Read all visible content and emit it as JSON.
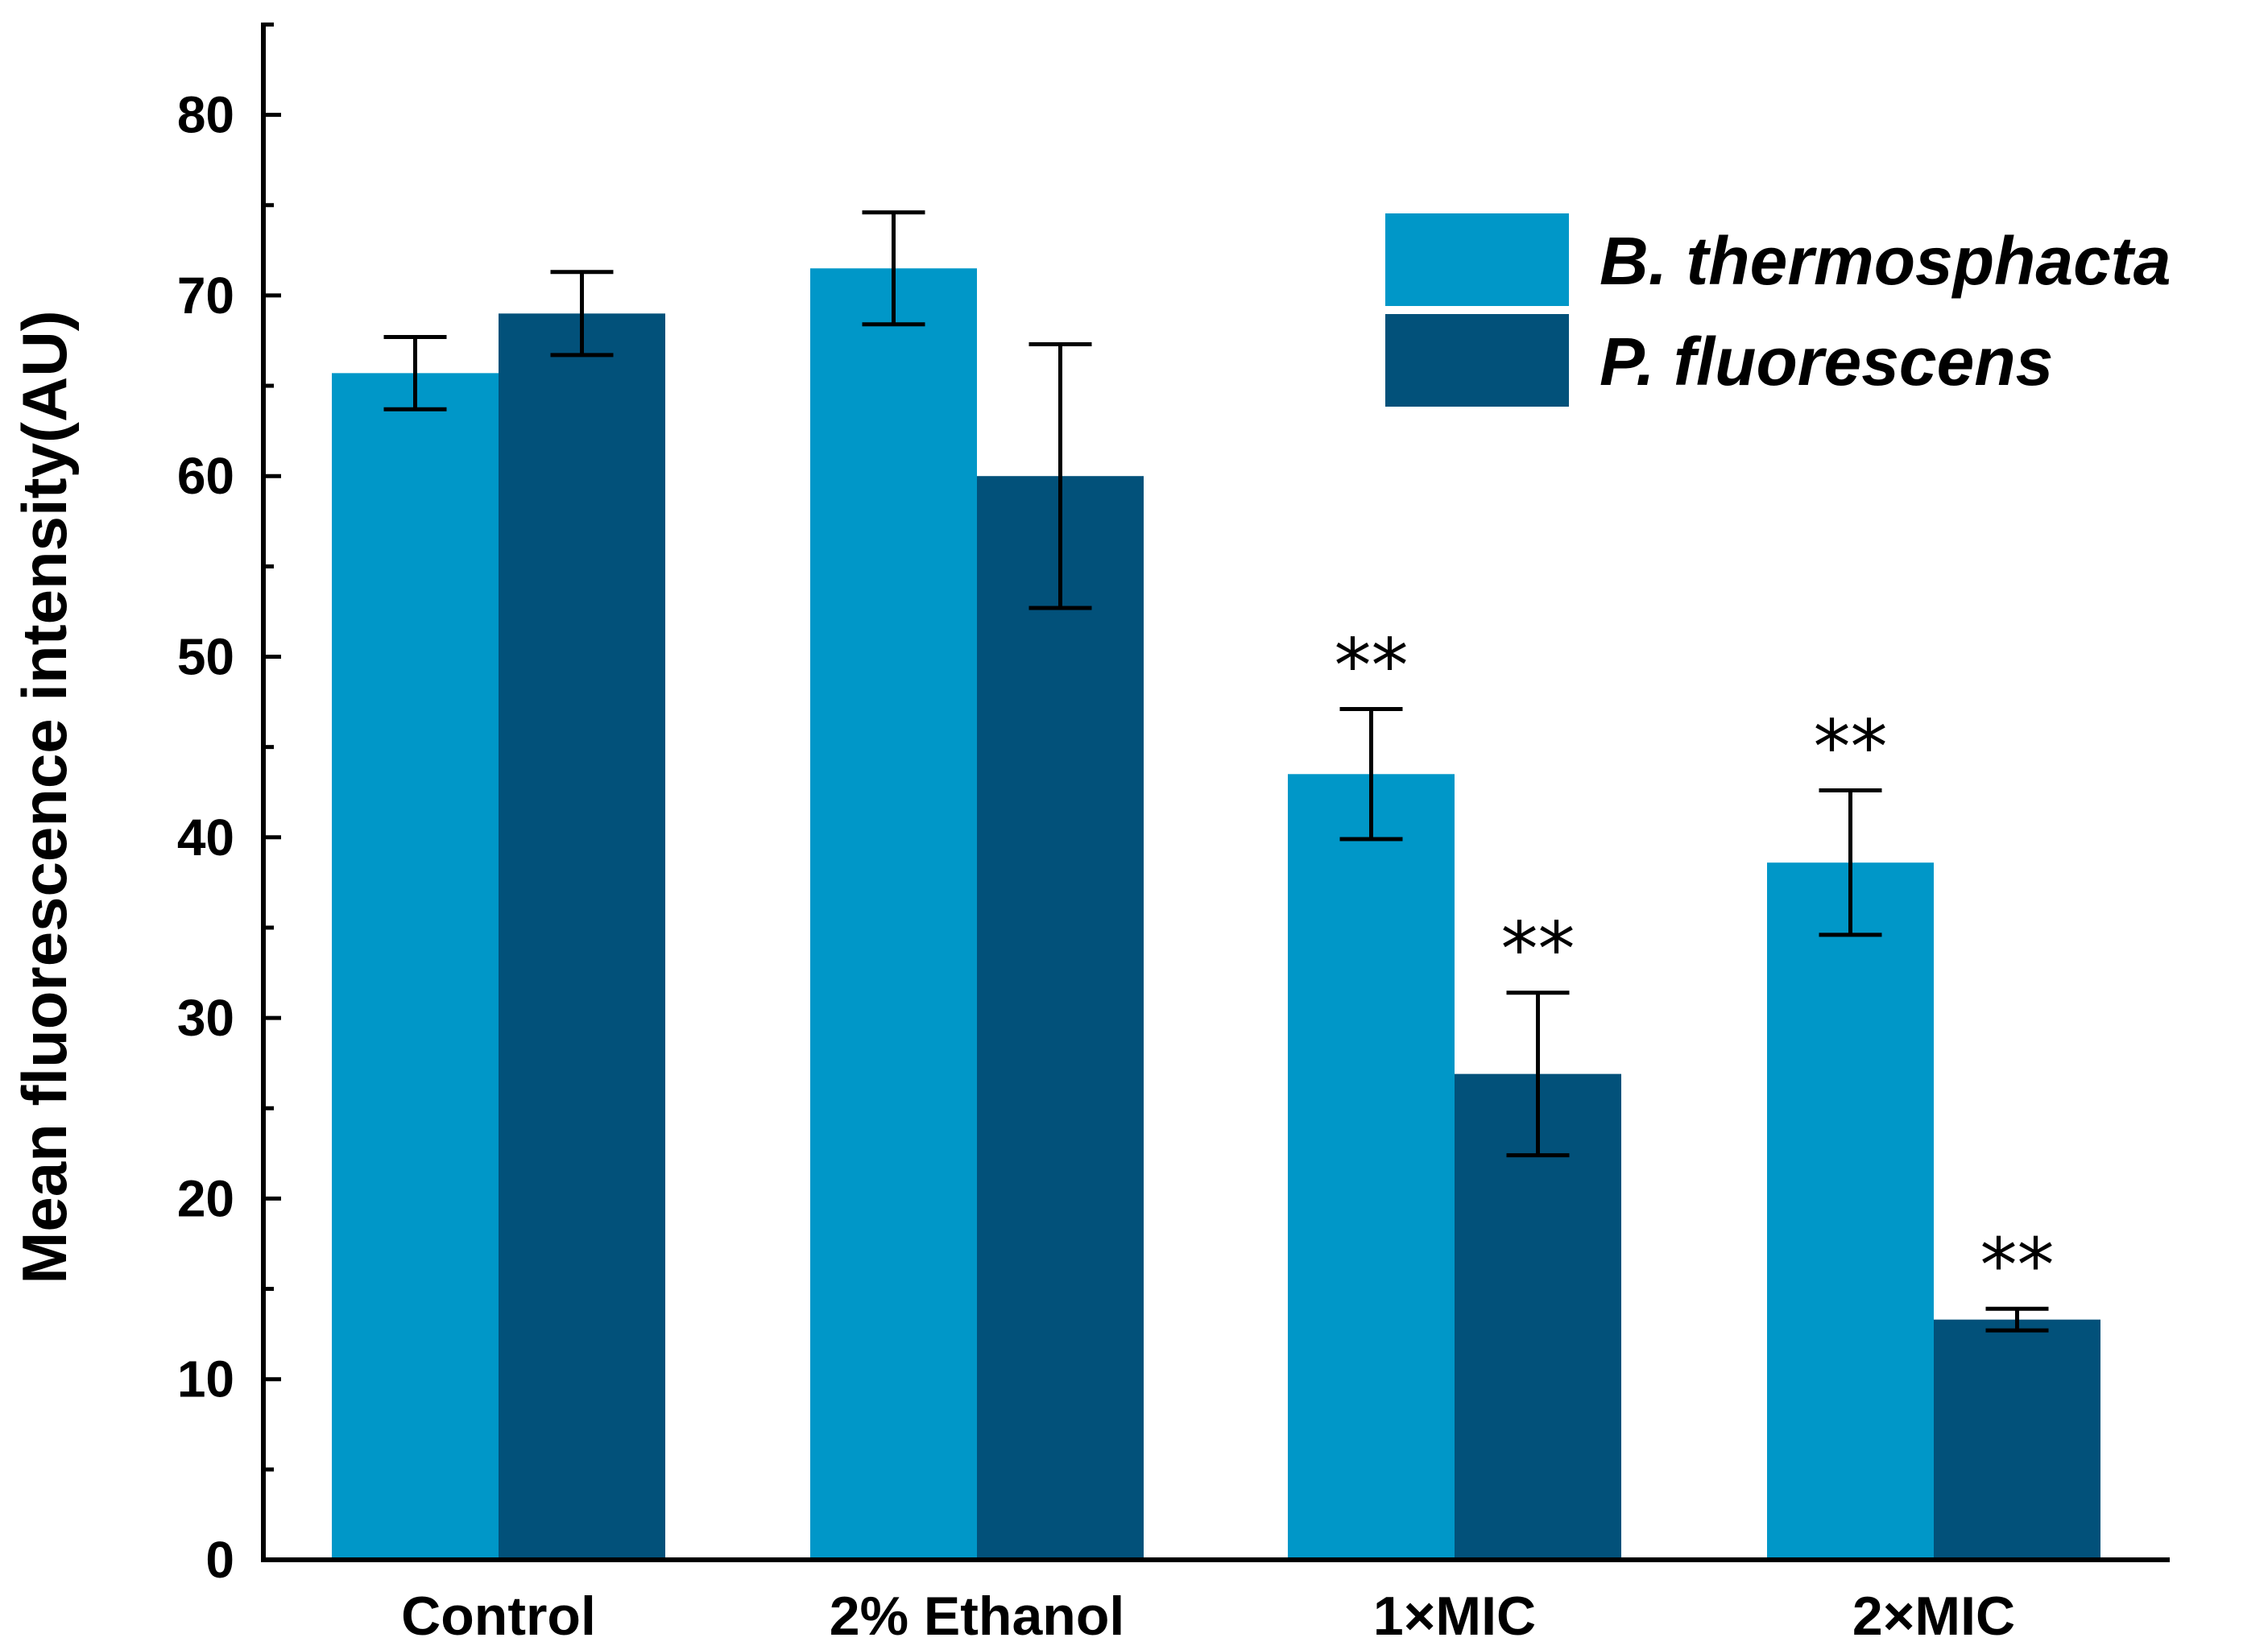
{
  "chart_data": {
    "type": "bar",
    "title": "",
    "xlabel": "",
    "ylabel": "Mean fluorescence intensity(AU)",
    "ylim": [
      0,
      85
    ],
    "yticks": [
      0,
      10,
      20,
      30,
      40,
      50,
      60,
      70,
      80
    ],
    "categories": [
      "Control",
      "2% Ethanol",
      "1×MIC",
      "2×MIC"
    ],
    "legend_position": "top-right",
    "series": [
      {
        "name": "B. thermosphacta",
        "color": "#0097c8",
        "values": [
          65.7,
          71.5,
          43.5,
          38.6
        ],
        "errors": [
          2.0,
          3.1,
          3.6,
          4.0
        ],
        "significance": [
          "",
          "",
          "**",
          "**"
        ]
      },
      {
        "name": "P. fluorescens",
        "color": "#02517a",
        "values": [
          69.0,
          60.0,
          26.9,
          13.3
        ],
        "errors": [
          2.3,
          7.3,
          4.5,
          0.6
        ],
        "significance": [
          "",
          "",
          "**",
          "**"
        ]
      }
    ]
  }
}
